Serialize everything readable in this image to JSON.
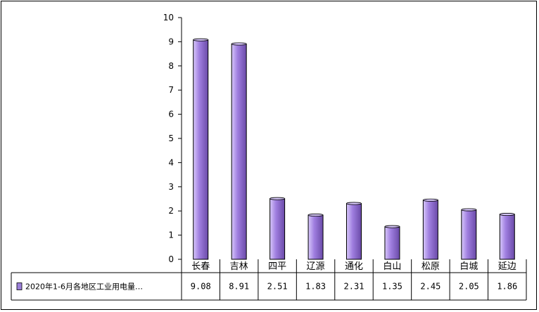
{
  "chart_data": {
    "type": "bar",
    "categories": [
      "长春",
      "吉林",
      "四平",
      "辽源",
      "通化",
      "白山",
      "松原",
      "白城",
      "延边"
    ],
    "series": [
      {
        "name": "2020年1-6月各地区工业用电量…",
        "values": [
          9.08,
          8.91,
          2.51,
          1.83,
          2.31,
          1.35,
          2.45,
          2.05,
          1.86
        ]
      }
    ],
    "value_labels": [
      "9.08",
      "8.91",
      "2.51",
      "1.83",
      "2.31",
      "1.35",
      "2.45",
      "2.05",
      "1.86"
    ],
    "ylim": [
      0,
      10
    ],
    "yticks": [
      "0",
      "1",
      "2",
      "3",
      "4",
      "5",
      "6",
      "7",
      "8",
      "9",
      "10"
    ],
    "grid": false,
    "legend_placement": "data-table-left",
    "colors": {
      "bar_fill": "#a07fe0",
      "bar_light": "#d8c8fb",
      "bar_dark": "#6a4aa8",
      "legend_key": "#9b7fd9"
    }
  }
}
